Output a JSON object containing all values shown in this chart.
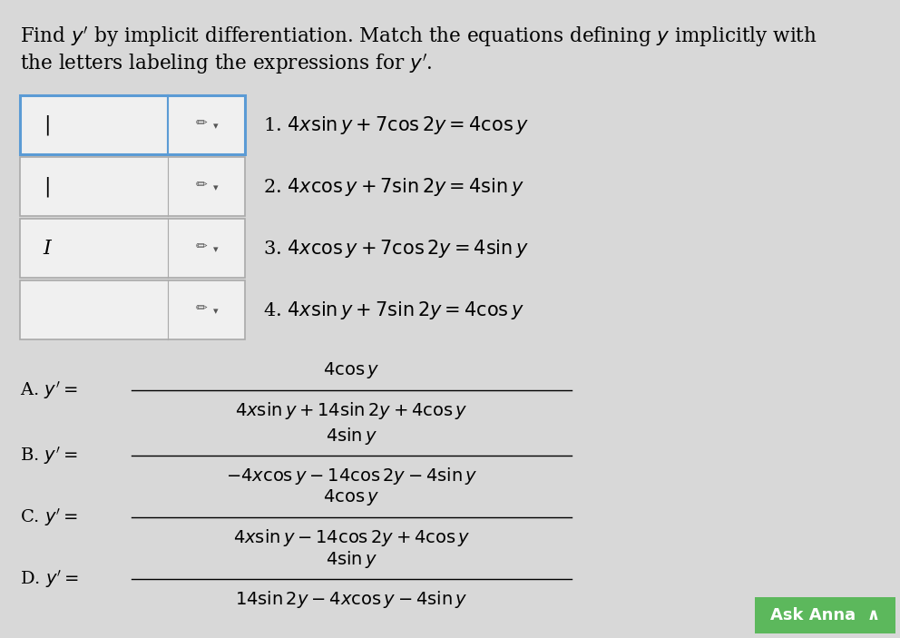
{
  "background_color": "#d8d8d8",
  "title_line1": "Find $y'$ by implicit differentiation. Match the equations defining $y$ implicitly with",
  "title_line2": "the letters labeling the expressions for $y'$.",
  "equations": [
    "1. $4x\\sin y + 7\\cos 2y = 4\\cos y$",
    "2. $4x\\cos y + 7\\sin 2y = 4\\sin y$",
    "3. $4x\\cos y + 7\\cos 2y = 4\\sin y$",
    "4. $4x\\sin y + 7\\sin 2y = 4\\cos y$"
  ],
  "box_labels": [
    "|",
    "|",
    "I",
    ""
  ],
  "answers": [
    {
      "label": "A. $y' = $",
      "numerator": "$4\\cos y$",
      "denominator": "$4x\\sin y + 14\\sin 2y + 4\\cos y$"
    },
    {
      "label": "B. $y' = $",
      "numerator": "$4\\sin y$",
      "denominator": "$-4x\\cos y - 14\\cos 2y - 4\\sin y$"
    },
    {
      "label": "C. $y' = $",
      "numerator": "$4\\cos y$",
      "denominator": "$4x\\sin y - 14\\cos 2y + 4\\cos y$"
    },
    {
      "label": "D. $y' = $",
      "numerator": "$4\\sin y$",
      "denominator": "$14\\sin 2y - 4x\\cos y - 4\\sin y$"
    }
  ],
  "ask_anna_color": "#5cb85c",
  "ask_anna_text": "Ask Anna  ∧",
  "box_border_color_highlight": "#5b9bd5",
  "box_border_color_normal": "#aaaaaa",
  "answer_fontsize": 14,
  "eq_fontsize": 15,
  "title_fontsize": 15.5,
  "label_fontsize": 15
}
